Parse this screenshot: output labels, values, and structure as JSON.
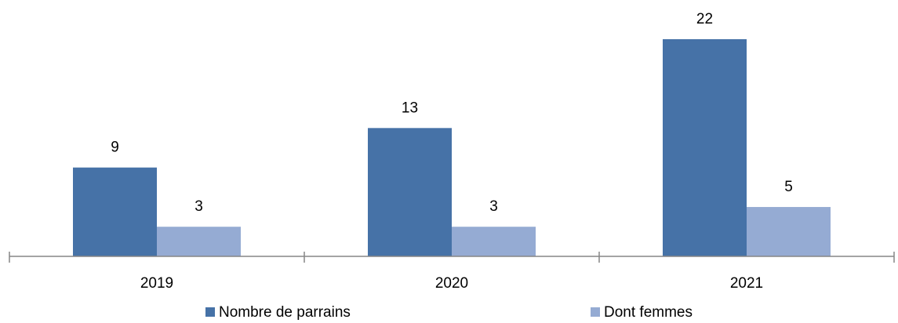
{
  "chart_data": {
    "type": "bar",
    "categories": [
      "2019",
      "2020",
      "2021"
    ],
    "series": [
      {
        "name": "Nombre de parrains",
        "color": "#4672a7",
        "values": [
          9,
          13,
          22
        ]
      },
      {
        "name": "Dont femmes",
        "color": "#95abd3",
        "values": [
          3,
          3,
          5
        ]
      }
    ],
    "legend": "bottom"
  }
}
